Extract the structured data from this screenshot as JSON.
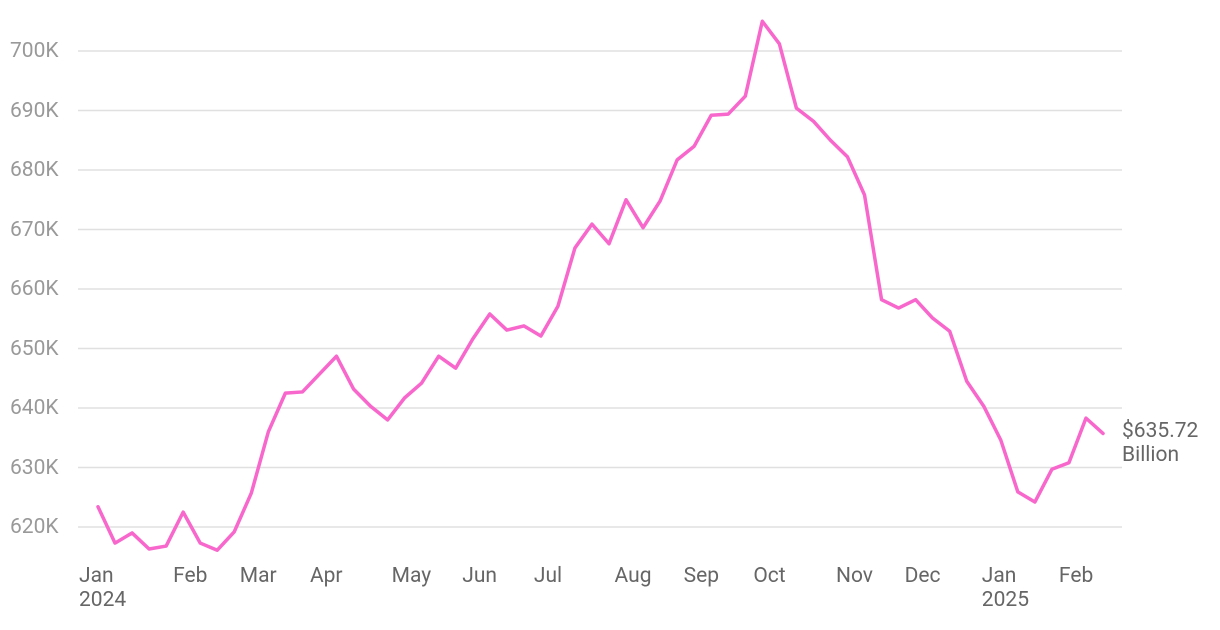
{
  "chart_data": {
    "type": "line",
    "categories": [
      "Jan\n2024",
      null,
      null,
      null,
      null,
      "Feb",
      null,
      null,
      null,
      "Mar",
      null,
      null,
      null,
      "Apr",
      null,
      null,
      null,
      null,
      "May",
      null,
      null,
      null,
      "Jun",
      null,
      null,
      null,
      "Jul",
      null,
      null,
      null,
      null,
      "Aug",
      null,
      null,
      null,
      "Sep",
      null,
      null,
      null,
      "Oct",
      null,
      null,
      null,
      null,
      "Nov",
      null,
      null,
      null,
      "Dec",
      null,
      null,
      null,
      null,
      "Jan\n2025",
      null,
      null,
      null,
      "Feb",
      null,
      null
    ],
    "series": [
      {
        "color": "#f767cc",
        "values": [
          623400,
          617300,
          619000,
          616300,
          616800,
          622500,
          617300,
          616100,
          619200,
          625700,
          636000,
          642500,
          642700,
          645700,
          648700,
          643200,
          640300,
          638000,
          641700,
          644200,
          648700,
          646700,
          651600,
          655800,
          653100,
          653800,
          652100,
          657100,
          666900,
          670900,
          667600,
          675000,
          670300,
          674800,
          681700,
          684000,
          689200,
          689400,
          692400,
          705000,
          701200,
          690400,
          688200,
          685000,
          682200,
          675800,
          658200,
          656800,
          658200,
          655100,
          652900,
          644500,
          640300,
          634600,
          625900,
          624200,
          629700,
          630800,
          638300,
          635720
        ],
        "value_labels": [
          null,
          null,
          null,
          null,
          null,
          null,
          null,
          null,
          null,
          null,
          null,
          null,
          null,
          null,
          null,
          null,
          null,
          null,
          null,
          null,
          null,
          null,
          null,
          null,
          null,
          null,
          null,
          null,
          null,
          null,
          null,
          null,
          null,
          null,
          null,
          null,
          null,
          null,
          null,
          null,
          null,
          null,
          null,
          null,
          null,
          null,
          null,
          null,
          null,
          null,
          null,
          null,
          null,
          null,
          null,
          null,
          null,
          null,
          null,
          "$635.72\nBillion"
        ]
      }
    ],
    "ylim": [
      614000,
      706000
    ],
    "yticks": [
      {
        "value": 620000,
        "label": "620K"
      },
      {
        "value": 630000,
        "label": "630K"
      },
      {
        "value": 640000,
        "label": "640K"
      },
      {
        "value": 650000,
        "label": "650K"
      },
      {
        "value": 660000,
        "label": "660K"
      },
      {
        "value": 670000,
        "label": "670K"
      },
      {
        "value": 680000,
        "label": "680K"
      },
      {
        "value": 690000,
        "label": "690K"
      },
      {
        "value": 700000,
        "label": "700K"
      }
    ],
    "grid": true
  }
}
